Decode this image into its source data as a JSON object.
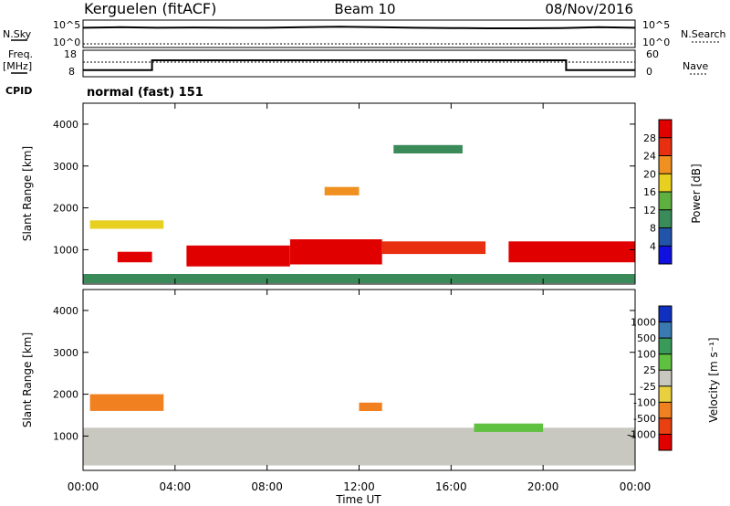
{
  "header": {
    "station": "Kerguelen (fitACF)",
    "beam": "Beam 10",
    "date": "08/Nov/2016"
  },
  "top_panels": {
    "nsky_label": "N.Sky",
    "nsearch_label": "N.Search",
    "freq_label_1": "Freq.",
    "freq_label_2": "[MHz]",
    "nave_label": "Nave",
    "cpid_label": "CPID",
    "cpid_text": "normal (fast) 151",
    "noise_ticks_left": [
      "10^5",
      "10^0"
    ],
    "noise_ticks_right": [
      "10^5",
      "10^0"
    ],
    "freq_ticks": [
      "18",
      "8"
    ],
    "nave_ticks": [
      "60",
      "0"
    ]
  },
  "chart_data": [
    {
      "type": "heatmap",
      "name": "power",
      "title": "",
      "ylabel": "Slant Range [km]",
      "ylim": [
        180,
        4500
      ],
      "yticks": [
        1000,
        2000,
        3000,
        4000
      ],
      "colorbar_label": "Power [dB]",
      "colorbar_ticks": [
        "4",
        "8",
        "12",
        "16",
        "20",
        "24",
        "28"
      ],
      "colors": [
        "#1010e0",
        "#2255aa",
        "#3a8a5a",
        "#60b040",
        "#e8d020",
        "#f09020",
        "#e83010",
        "#e00000"
      ],
      "bands": [
        {
          "t0": 0.0,
          "t1": 24.0,
          "r0": 200,
          "r1": 420,
          "level": 2
        },
        {
          "t0": 0.3,
          "t1": 3.5,
          "r0": 1500,
          "r1": 1700,
          "level": 4
        },
        {
          "t0": 1.5,
          "t1": 3.0,
          "r0": 700,
          "r1": 950,
          "level": 7
        },
        {
          "t0": 4.5,
          "t1": 9.0,
          "r0": 600,
          "r1": 1100,
          "level": 7
        },
        {
          "t0": 9.0,
          "t1": 13.0,
          "r0": 650,
          "r1": 1250,
          "level": 7
        },
        {
          "t0": 13.0,
          "t1": 17.5,
          "r0": 900,
          "r1": 1200,
          "level": 6
        },
        {
          "t0": 18.5,
          "t1": 24.0,
          "r0": 700,
          "r1": 1200,
          "level": 7
        },
        {
          "t0": 10.5,
          "t1": 12.0,
          "r0": 2300,
          "r1": 2500,
          "level": 5
        },
        {
          "t0": 13.5,
          "t1": 16.5,
          "r0": 3300,
          "r1": 3500,
          "level": 2
        }
      ]
    },
    {
      "type": "heatmap",
      "name": "velocity",
      "title": "",
      "ylabel": "Slant Range [km]",
      "ylim": [
        180,
        4500
      ],
      "yticks": [
        1000,
        2000,
        3000,
        4000
      ],
      "colorbar_label": "Velocity [m s⁻¹]",
      "colorbar_ticks": [
        "1000",
        "500",
        "100",
        "25",
        "-25",
        "-100",
        "-500",
        "-1000"
      ],
      "colors": [
        "#1030c0",
        "#3a7ab0",
        "#3a9a5a",
        "#60c040",
        "#c8c8c0",
        "#e8d040",
        "#f08020",
        "#e84010",
        "#e00000"
      ],
      "bands": [
        {
          "t0": 0.0,
          "t1": 24.0,
          "r0": 300,
          "r1": 1200,
          "level": 4
        },
        {
          "t0": 0.3,
          "t1": 3.5,
          "r0": 1600,
          "r1": 2000,
          "level": 6
        },
        {
          "t0": 12.0,
          "t1": 13.0,
          "r0": 1600,
          "r1": 1800,
          "level": 6
        },
        {
          "t0": 17.0,
          "t1": 20.0,
          "r0": 1100,
          "r1": 1300,
          "level": 3
        }
      ]
    }
  ],
  "time_axis": {
    "ticks": [
      "00:00",
      "04:00",
      "08:00",
      "12:00",
      "16:00",
      "20:00",
      "00:00"
    ],
    "label": "Time UT"
  },
  "series": {
    "noise_sky": [
      0.72,
      0.74,
      0.72,
      0.73,
      0.72,
      0.72,
      0.74,
      0.76,
      0.74,
      0.72,
      0.71,
      0.7,
      0.7,
      0.71,
      0.74,
      0.72
    ],
    "freq_level_fraction": [
      0.25,
      0.25,
      0.62,
      0.62,
      0.62,
      0.62,
      0.62,
      0.62,
      0.62,
      0.62,
      0.62,
      0.62,
      0.62,
      0.62,
      0.25,
      0.25
    ]
  }
}
